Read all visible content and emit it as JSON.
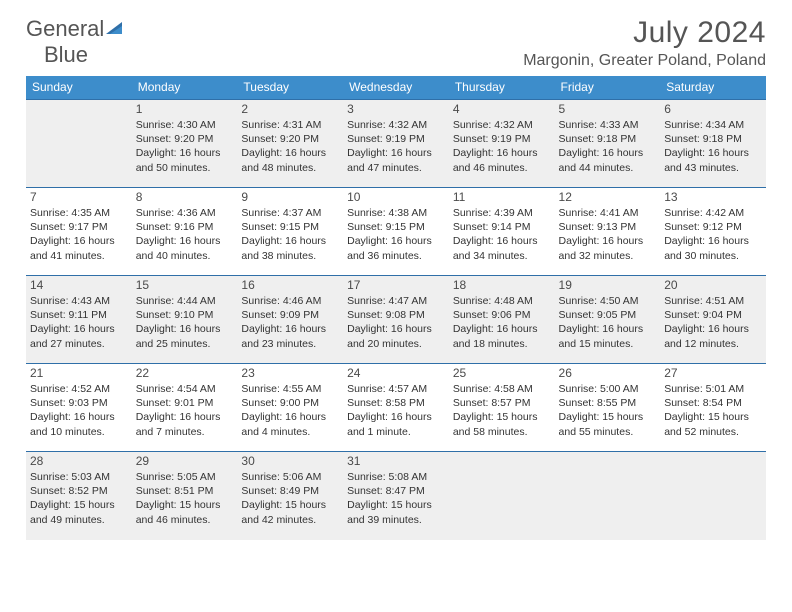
{
  "brand": {
    "line1": "General",
    "line2": "Blue"
  },
  "title": "July 2024",
  "location": "Margonin, Greater Poland, Poland",
  "dow": [
    "Sunday",
    "Monday",
    "Tuesday",
    "Wednesday",
    "Thursday",
    "Friday",
    "Saturday"
  ],
  "colors": {
    "header_bg": "#3d8dcb",
    "header_text": "#ffffff",
    "row_border": "#2f6fa8",
    "alt_row_bg": "#efefef",
    "brand_gray": "#555555",
    "brand_blue": "#3b7cba"
  },
  "weeks": [
    [
      null,
      {
        "n": "1",
        "sr": "4:30 AM",
        "ss": "9:20 PM",
        "dl": "16 hours and 50 minutes."
      },
      {
        "n": "2",
        "sr": "4:31 AM",
        "ss": "9:20 PM",
        "dl": "16 hours and 48 minutes."
      },
      {
        "n": "3",
        "sr": "4:32 AM",
        "ss": "9:19 PM",
        "dl": "16 hours and 47 minutes."
      },
      {
        "n": "4",
        "sr": "4:32 AM",
        "ss": "9:19 PM",
        "dl": "16 hours and 46 minutes."
      },
      {
        "n": "5",
        "sr": "4:33 AM",
        "ss": "9:18 PM",
        "dl": "16 hours and 44 minutes."
      },
      {
        "n": "6",
        "sr": "4:34 AM",
        "ss": "9:18 PM",
        "dl": "16 hours and 43 minutes."
      }
    ],
    [
      {
        "n": "7",
        "sr": "4:35 AM",
        "ss": "9:17 PM",
        "dl": "16 hours and 41 minutes."
      },
      {
        "n": "8",
        "sr": "4:36 AM",
        "ss": "9:16 PM",
        "dl": "16 hours and 40 minutes."
      },
      {
        "n": "9",
        "sr": "4:37 AM",
        "ss": "9:15 PM",
        "dl": "16 hours and 38 minutes."
      },
      {
        "n": "10",
        "sr": "4:38 AM",
        "ss": "9:15 PM",
        "dl": "16 hours and 36 minutes."
      },
      {
        "n": "11",
        "sr": "4:39 AM",
        "ss": "9:14 PM",
        "dl": "16 hours and 34 minutes."
      },
      {
        "n": "12",
        "sr": "4:41 AM",
        "ss": "9:13 PM",
        "dl": "16 hours and 32 minutes."
      },
      {
        "n": "13",
        "sr": "4:42 AM",
        "ss": "9:12 PM",
        "dl": "16 hours and 30 minutes."
      }
    ],
    [
      {
        "n": "14",
        "sr": "4:43 AM",
        "ss": "9:11 PM",
        "dl": "16 hours and 27 minutes."
      },
      {
        "n": "15",
        "sr": "4:44 AM",
        "ss": "9:10 PM",
        "dl": "16 hours and 25 minutes."
      },
      {
        "n": "16",
        "sr": "4:46 AM",
        "ss": "9:09 PM",
        "dl": "16 hours and 23 minutes."
      },
      {
        "n": "17",
        "sr": "4:47 AM",
        "ss": "9:08 PM",
        "dl": "16 hours and 20 minutes."
      },
      {
        "n": "18",
        "sr": "4:48 AM",
        "ss": "9:06 PM",
        "dl": "16 hours and 18 minutes."
      },
      {
        "n": "19",
        "sr": "4:50 AM",
        "ss": "9:05 PM",
        "dl": "16 hours and 15 minutes."
      },
      {
        "n": "20",
        "sr": "4:51 AM",
        "ss": "9:04 PM",
        "dl": "16 hours and 12 minutes."
      }
    ],
    [
      {
        "n": "21",
        "sr": "4:52 AM",
        "ss": "9:03 PM",
        "dl": "16 hours and 10 minutes."
      },
      {
        "n": "22",
        "sr": "4:54 AM",
        "ss": "9:01 PM",
        "dl": "16 hours and 7 minutes."
      },
      {
        "n": "23",
        "sr": "4:55 AM",
        "ss": "9:00 PM",
        "dl": "16 hours and 4 minutes."
      },
      {
        "n": "24",
        "sr": "4:57 AM",
        "ss": "8:58 PM",
        "dl": "16 hours and 1 minute."
      },
      {
        "n": "25",
        "sr": "4:58 AM",
        "ss": "8:57 PM",
        "dl": "15 hours and 58 minutes."
      },
      {
        "n": "26",
        "sr": "5:00 AM",
        "ss": "8:55 PM",
        "dl": "15 hours and 55 minutes."
      },
      {
        "n": "27",
        "sr": "5:01 AM",
        "ss": "8:54 PM",
        "dl": "15 hours and 52 minutes."
      }
    ],
    [
      {
        "n": "28",
        "sr": "5:03 AM",
        "ss": "8:52 PM",
        "dl": "15 hours and 49 minutes."
      },
      {
        "n": "29",
        "sr": "5:05 AM",
        "ss": "8:51 PM",
        "dl": "15 hours and 46 minutes."
      },
      {
        "n": "30",
        "sr": "5:06 AM",
        "ss": "8:49 PM",
        "dl": "15 hours and 42 minutes."
      },
      {
        "n": "31",
        "sr": "5:08 AM",
        "ss": "8:47 PM",
        "dl": "15 hours and 39 minutes."
      },
      null,
      null,
      null
    ]
  ]
}
